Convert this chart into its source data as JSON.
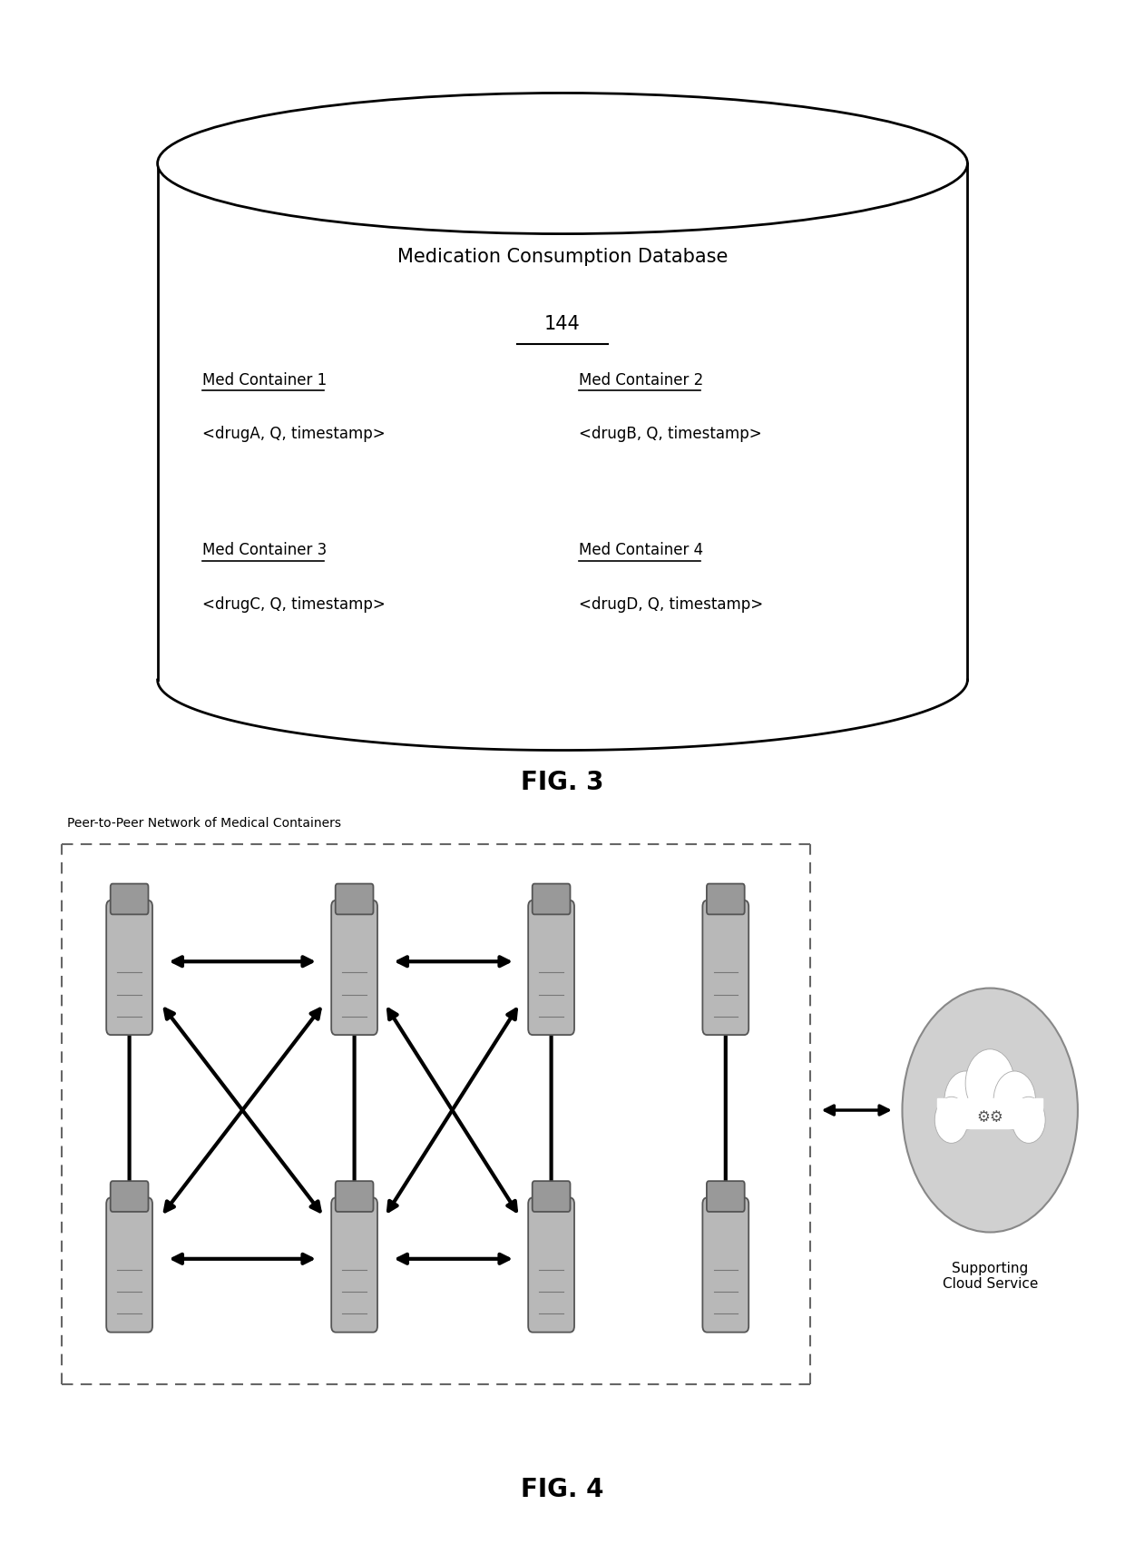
{
  "bg_color": "#ffffff",
  "fig3": {
    "title": "Medication Consumption Database",
    "title_num": "144",
    "containers": [
      {
        "label": "Med Container 1",
        "data": "<drugA, Q, timestamp>",
        "col": 0,
        "row": 0
      },
      {
        "label": "Med Container 2",
        "data": "<drugB, Q, timestamp>",
        "col": 1,
        "row": 0
      },
      {
        "label": "Med Container 3",
        "data": "<drugC, Q, timestamp>",
        "col": 0,
        "row": 1
      },
      {
        "label": "Med Container 4",
        "data": "<drugD, Q, timestamp>",
        "col": 1,
        "row": 1
      }
    ],
    "fig_label": "FIG. 3"
  },
  "fig4": {
    "label": "FIG. 4",
    "box_label": "Peer-to-Peer Network of Medical Containers",
    "cloud_label": "Supporting\nCloud Service"
  }
}
